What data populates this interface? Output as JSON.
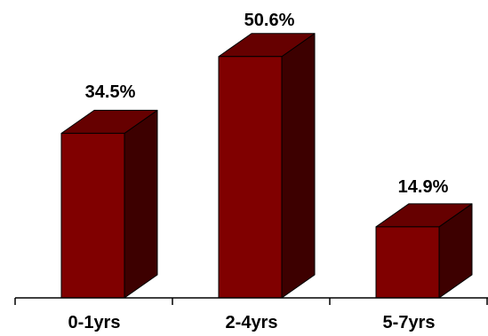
{
  "chart_data": {
    "type": "bar",
    "style": "3d",
    "categories": [
      "0-1yrs",
      "2-4yrs",
      "5-7yrs"
    ],
    "values": [
      34.5,
      50.6,
      14.9
    ],
    "value_labels": [
      "34.5%",
      "50.6%",
      "14.9%"
    ],
    "title": "",
    "xlabel": "",
    "ylabel": "",
    "grid": false,
    "legend": "none",
    "colors": {
      "front": "#800000",
      "top": "#660000",
      "side": "#3d0000",
      "edge": "#000000"
    }
  }
}
